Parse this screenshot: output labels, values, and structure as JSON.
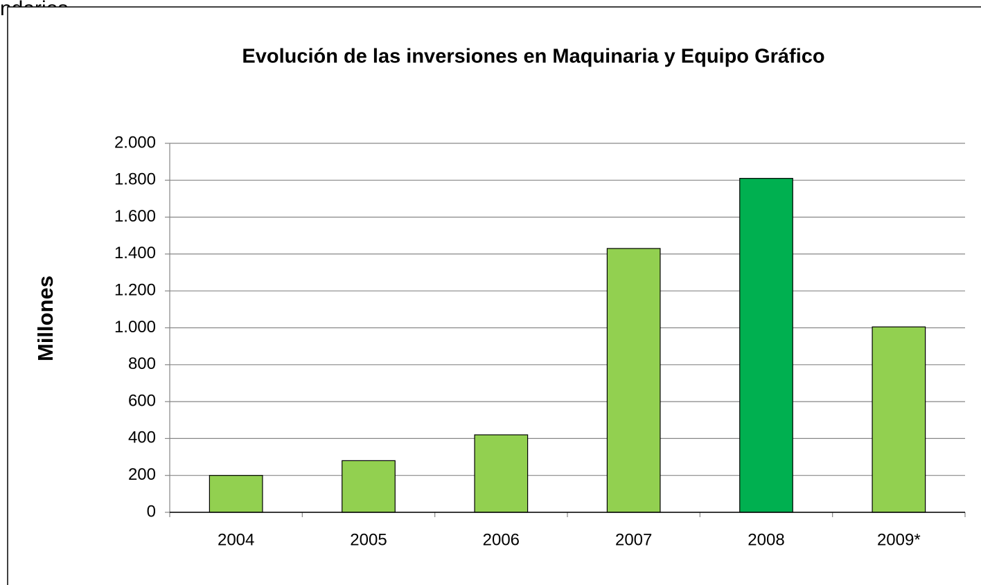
{
  "caption": "ndarios",
  "chart_data": {
    "type": "bar",
    "title": "Evolución de las inversiones en Maquinaria y Equipo Gráfico",
    "y_label": "Millones",
    "categories": [
      "2004",
      "2005",
      "2006",
      "2007",
      "2008",
      "2009*"
    ],
    "values": [
      200,
      280,
      420,
      1430,
      1810,
      1005
    ],
    "colors": [
      "#92d050",
      "#92d050",
      "#92d050",
      "#92d050",
      "#00b050",
      "#92d050"
    ],
    "ylim": [
      0,
      2000
    ],
    "yticks": [
      0,
      200,
      400,
      600,
      800,
      {
        "value": 1000,
        "label": "1.000"
      },
      {
        "value": 1200,
        "label": "1.200"
      },
      {
        "value": 1400,
        "label": "1.400"
      },
      {
        "value": 1600,
        "label": "1.600"
      },
      {
        "value": 1800,
        "label": "1.800"
      },
      {
        "value": 2000,
        "label": "2.000"
      }
    ],
    "grid": true
  }
}
